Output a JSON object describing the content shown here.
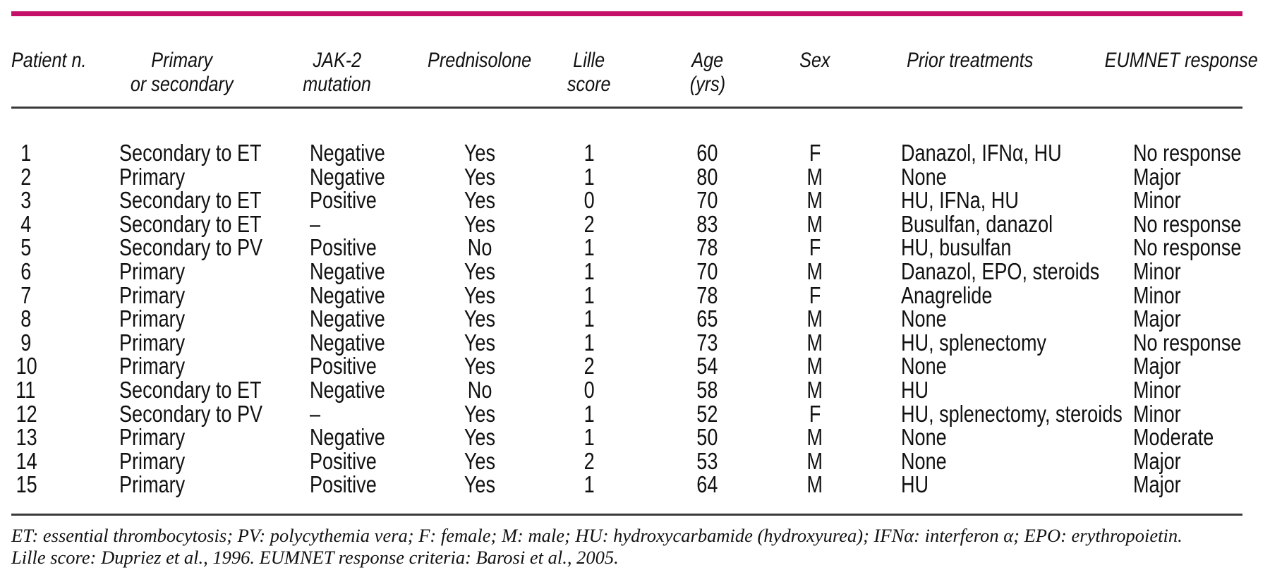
{
  "accent": {
    "top_rule_color": "#c5106a",
    "inner_rule_color": "#3a3a3a"
  },
  "table": {
    "columns": [
      {
        "id": "patient-n",
        "label_lines": [
          "Patient n."
        ]
      },
      {
        "id": "primary-or-secondary",
        "label_lines": [
          "Primary",
          "or secondary"
        ]
      },
      {
        "id": "jak-2-mutation",
        "label_lines": [
          "JAK-2",
          "mutation"
        ]
      },
      {
        "id": "prednisolone",
        "label_lines": [
          "Prednisolone"
        ]
      },
      {
        "id": "lille-score",
        "label_lines": [
          "Lille",
          "score"
        ]
      },
      {
        "id": "age-yrs",
        "label_lines": [
          "Age",
          "(yrs)"
        ]
      },
      {
        "id": "sex",
        "label_lines": [
          "Sex"
        ]
      },
      {
        "id": "prior-treatments",
        "label_lines": [
          "Prior treatments"
        ]
      },
      {
        "id": "eumnet-response",
        "label_lines": [
          "EUMNET response"
        ]
      }
    ],
    "rows": [
      [
        "1",
        "Secondary to ET",
        "Negative",
        "Yes",
        "1",
        "60",
        "F",
        "Danazol, IFNα, HU",
        "No response"
      ],
      [
        "2",
        "Primary",
        "Negative",
        "Yes",
        "1",
        "80",
        "M",
        "None",
        "Major"
      ],
      [
        "3",
        "Secondary to ET",
        "Positive",
        "Yes",
        "0",
        "70",
        "M",
        "HU, IFNa, HU",
        "Minor"
      ],
      [
        "4",
        "Secondary to ET",
        "–",
        "Yes",
        "2",
        "83",
        "M",
        "Busulfan, danazol",
        "No response"
      ],
      [
        "5",
        "Secondary to PV",
        "Positive",
        "No",
        "1",
        "78",
        "F",
        "HU, busulfan",
        "No response"
      ],
      [
        "6",
        "Primary",
        "Negative",
        "Yes",
        "1",
        "70",
        "M",
        "Danazol, EPO, steroids",
        "Minor"
      ],
      [
        "7",
        "Primary",
        "Negative",
        "Yes",
        "1",
        "78",
        "F",
        "Anagrelide",
        "Minor"
      ],
      [
        "8",
        "Primary",
        "Negative",
        "Yes",
        "1",
        "65",
        "M",
        "None",
        "Major"
      ],
      [
        "9",
        "Primary",
        "Negative",
        "Yes",
        "1",
        "73",
        "M",
        "HU, splenectomy",
        "No response"
      ],
      [
        "10",
        "Primary",
        "Positive",
        "Yes",
        "2",
        "54",
        "M",
        "None",
        "Major"
      ],
      [
        "11",
        "Secondary to ET",
        "Negative",
        "No",
        "0",
        "58",
        "M",
        "HU",
        "Minor"
      ],
      [
        "12",
        "Secondary to PV",
        "–",
        "Yes",
        "1",
        "52",
        "F",
        "HU, splenectomy, steroids",
        "Minor"
      ],
      [
        "13",
        "Primary",
        "Negative",
        "Yes",
        "1",
        "50",
        "M",
        "None",
        "Moderate"
      ],
      [
        "14",
        "Primary",
        "Positive",
        "Yes",
        "2",
        "53",
        "M",
        "None",
        "Major"
      ],
      [
        "15",
        "Primary",
        "Positive",
        "Yes",
        "1",
        "64",
        "M",
        "HU",
        "Major"
      ]
    ]
  },
  "footnotes": [
    "ET: essential thrombocytosis; PV: polycythemia vera; F: female; M: male; HU: hydroxycarbamide (hydroxyurea); IFNα: interferon α; EPO: erythropoietin.",
    "Lille score: Dupriez et al., 1996. EUMNET response criteria: Barosi et al., 2005."
  ]
}
